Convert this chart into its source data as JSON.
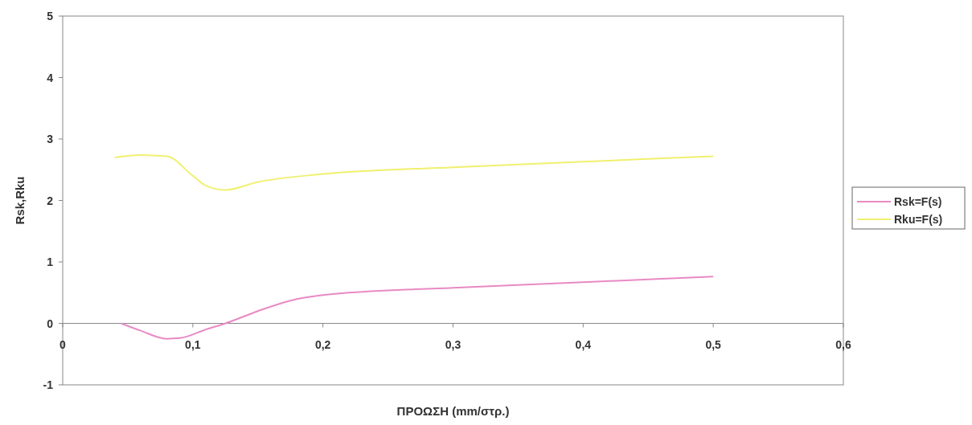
{
  "chart_data": {
    "type": "line",
    "xlabel": "ΠΡΟΩΣΗ (mm/στρ.)",
    "ylabel": "Rsk,Rku",
    "xlim": [
      0,
      0.6
    ],
    "xticks": [
      0,
      {
        "value": 0.1,
        "label": "0,1"
      },
      {
        "value": 0.2,
        "label": "0,2"
      },
      {
        "value": 0.3,
        "label": "0,3"
      },
      {
        "value": 0.4,
        "label": "0,4"
      },
      {
        "value": 0.5,
        "label": "0,5"
      },
      {
        "value": 0.6,
        "label": "0,6"
      }
    ],
    "ylim": [
      -1,
      5
    ],
    "yticks": [
      -1,
      0,
      1,
      2,
      3,
      4,
      5
    ],
    "grid": false,
    "legend": "right",
    "marker": "none",
    "line_style": "solid",
    "series": [
      {
        "name": "Rsk=F(s)",
        "color": "#e88ac4",
        "x": [
          0.045,
          0.06,
          0.08,
          0.09,
          0.11,
          0.125,
          0.15,
          0.175,
          0.2,
          0.3,
          0.4,
          0.5
        ],
        "values": [
          0,
          -0.12,
          -0.25,
          -0.24,
          -0.1,
          0,
          0.2,
          0.37,
          0.46,
          0.58,
          0.67,
          0.76
        ]
      },
      {
        "name": "Rku=F(s)",
        "color": "#f0f070",
        "x": [
          0.04,
          0.06,
          0.08,
          0.1,
          0.11,
          0.125,
          0.15,
          0.2,
          0.3,
          0.4,
          0.5
        ],
        "values": [
          2.7,
          2.74,
          2.72,
          2.4,
          2.24,
          2.17,
          2.3,
          2.43,
          2.54,
          2.63,
          2.72
        ]
      }
    ]
  }
}
